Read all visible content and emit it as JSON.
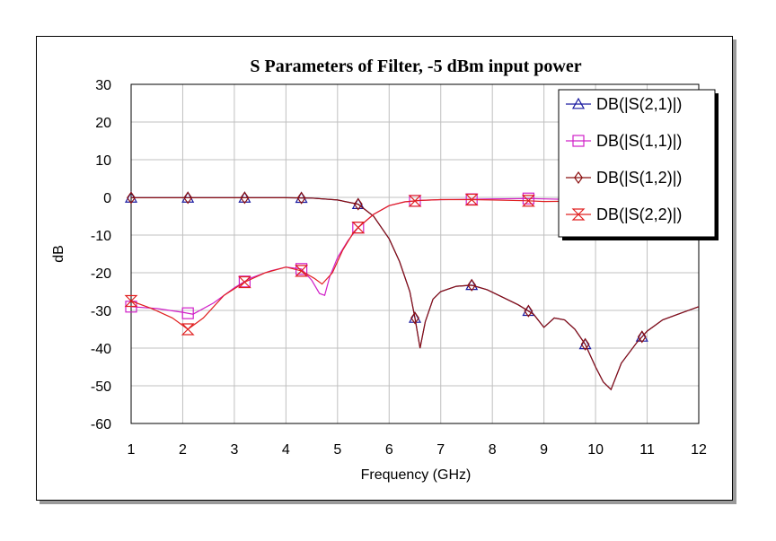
{
  "chart_data": {
    "type": "line",
    "title": "S Parameters of Filter, -5 dBm input power",
    "xlabel": "Frequency (GHz)",
    "ylabel": "dB",
    "xlim": [
      1,
      12
    ],
    "ylim": [
      -60,
      30
    ],
    "xticks": [
      1,
      2,
      3,
      4,
      5,
      6,
      7,
      8,
      9,
      10,
      11,
      12
    ],
    "yticks": [
      30,
      20,
      10,
      0,
      -10,
      -20,
      -30,
      -40,
      -50,
      -60
    ],
    "grid": true,
    "legend_position": "top-right",
    "series": [
      {
        "name": "DB(|S(2,1)|)",
        "color": "#1a1aa0",
        "marker": "triangle",
        "x": [
          1,
          2,
          3,
          4,
          4.5,
          5,
          5.4,
          5.7,
          6.0,
          6.2,
          6.4,
          6.5,
          6.6,
          6.7,
          6.85,
          7.0,
          7.3,
          7.6,
          7.9,
          8.2,
          8.5,
          8.8,
          9.0,
          9.2,
          9.4,
          9.6,
          9.8,
          10.0,
          10.15,
          10.3,
          10.5,
          10.8,
          11.0,
          11.3,
          11.6,
          12.0
        ],
        "y": [
          -0.1,
          -0.1,
          -0.1,
          -0.1,
          -0.2,
          -0.7,
          -1.8,
          -5,
          -11,
          -17,
          -25,
          -32,
          -40,
          -33,
          -27,
          -25,
          -23.6,
          -23.3,
          -24.5,
          -26.5,
          -28.5,
          -31,
          -34.5,
          -32,
          -32.5,
          -35,
          -39,
          -45,
          -49,
          -51,
          -44,
          -38.5,
          -35.5,
          -32.5,
          -31,
          -29
        ]
      },
      {
        "name": "DB(|S(1,1)|)",
        "color": "#d020c8",
        "marker": "square",
        "x": [
          1,
          1.5,
          2,
          2.2,
          2.6,
          3.0,
          3.3,
          3.7,
          4.0,
          4.3,
          4.5,
          4.65,
          4.75,
          4.85,
          5.0,
          5.2,
          5.4,
          5.7,
          6.0,
          6.3,
          6.6,
          7.0,
          7.6,
          8.0,
          8.7,
          9.0,
          9.6,
          10.0,
          10.5,
          11.0,
          12.0
        ],
        "y": [
          -29,
          -29.5,
          -30.5,
          -31,
          -28,
          -24,
          -21.5,
          -19.5,
          -18.5,
          -19,
          -22,
          -25.5,
          -26,
          -21,
          -16,
          -11.5,
          -8,
          -4.5,
          -2.2,
          -1.2,
          -0.8,
          -0.6,
          -0.5,
          -0.4,
          -0.3,
          -0.4,
          -0.6,
          -0.5,
          -0.3,
          -0.2,
          -0.2
        ]
      },
      {
        "name": "DB(|S(1,2)|)",
        "color": "#8b1010",
        "marker": "diamond",
        "x": [
          1,
          2,
          3,
          4,
          4.5,
          5,
          5.4,
          5.7,
          6.0,
          6.2,
          6.4,
          6.5,
          6.6,
          6.7,
          6.85,
          7.0,
          7.3,
          7.6,
          7.9,
          8.2,
          8.5,
          8.8,
          9.0,
          9.2,
          9.4,
          9.6,
          9.8,
          10.0,
          10.15,
          10.3,
          10.5,
          10.8,
          11.0,
          11.3,
          11.6,
          12.0
        ],
        "y": [
          -0.1,
          -0.1,
          -0.1,
          -0.1,
          -0.2,
          -0.7,
          -1.8,
          -5,
          -11,
          -17,
          -25,
          -32,
          -40,
          -33,
          -27,
          -25,
          -23.6,
          -23.3,
          -24.5,
          -26.5,
          -28.5,
          -31,
          -34.5,
          -32,
          -32.5,
          -35,
          -39,
          -45,
          -49,
          -51,
          -44,
          -38.5,
          -35.5,
          -32.5,
          -31,
          -29
        ]
      },
      {
        "name": "DB(|S(2,2)|)",
        "color": "#e02020",
        "marker": "hourglass",
        "x": [
          1,
          1.4,
          1.8,
          2.1,
          2.4,
          2.8,
          3.2,
          3.6,
          4.0,
          4.3,
          4.55,
          4.7,
          4.9,
          5.1,
          5.3,
          5.4,
          5.7,
          6.0,
          6.3,
          6.6,
          7.0,
          7.6,
          8.0,
          8.7,
          9.0,
          9.6,
          10.0,
          10.5,
          11.0,
          12.0
        ],
        "y": [
          -27.5,
          -29.5,
          -32,
          -35,
          -32,
          -26,
          -22.5,
          -20,
          -18.5,
          -19.5,
          -21.5,
          -23,
          -20,
          -14,
          -9.5,
          -8,
          -4.5,
          -2.2,
          -1.2,
          -0.8,
          -0.6,
          -0.6,
          -0.7,
          -0.9,
          -1.1,
          -1.0,
          -0.6,
          -0.3,
          -0.2,
          -0.2
        ]
      }
    ],
    "legend": [
      "DB(|S(2,1)|)",
      "DB(|S(1,1)|)",
      "DB(|S(1,2)|)",
      "DB(|S(2,2)|)"
    ]
  }
}
